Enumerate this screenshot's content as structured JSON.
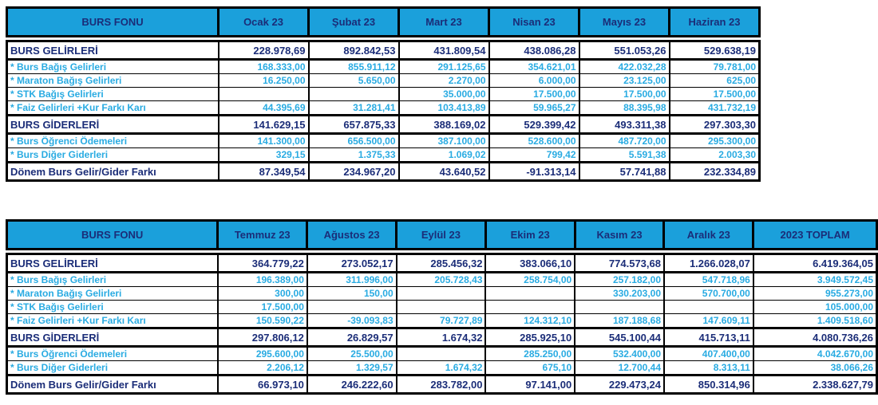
{
  "report": {
    "colors": {
      "header_bg": "#1BA0DB",
      "header_text": "#1B2D78",
      "section_text": "#1B2D78",
      "detail_text": "#29ABE2",
      "border": "#000000"
    },
    "tables": [
      {
        "corner_label": "BURS FONU",
        "columns": [
          "Ocak 23",
          "Şubat 23",
          "Mart 23",
          "Nisan 23",
          "Mayıs 23",
          "Haziran 23"
        ],
        "rows": [
          {
            "label": "BURS GELİRLERİ",
            "style": "section",
            "values": [
              "228.978,69",
              "892.842,53",
              "431.809,54",
              "438.086,28",
              "551.053,26",
              "529.638,19"
            ]
          },
          {
            "label": "* Burs Bağış Gelirleri",
            "style": "detail",
            "values": [
              "168.333,00",
              "855.911,12",
              "291.125,65",
              "354.621,01",
              "422.032,28",
              "79.781,00"
            ]
          },
          {
            "label": "* Maraton Bağış Gelirleri",
            "style": "detail",
            "values": [
              "16.250,00",
              "5.650,00",
              "2.270,00",
              "6.000,00",
              "23.125,00",
              "625,00"
            ]
          },
          {
            "label": "* STK Bağış Gelirleri",
            "style": "detail",
            "values": [
              "",
              "",
              "35.000,00",
              "17.500,00",
              "17.500,00",
              "17.500,00"
            ]
          },
          {
            "label": "* Faiz Gelirleri +Kur Farkı Karı",
            "style": "detail",
            "values": [
              "44.395,69",
              "31.281,41",
              "103.413,89",
              "59.965,27",
              "88.395,98",
              "431.732,19"
            ]
          },
          {
            "label": "BURS GİDERLERİ",
            "style": "section",
            "values": [
              "141.629,15",
              "657.875,33",
              "388.169,02",
              "529.399,42",
              "493.311,38",
              "297.303,30"
            ]
          },
          {
            "label": "* Burs Öğrenci Ödemeleri",
            "style": "detail",
            "values": [
              "141.300,00",
              "656.500,00",
              "387.100,00",
              "528.600,00",
              "487.720,00",
              "295.300,00"
            ]
          },
          {
            "label": "* Burs Diğer Giderleri",
            "style": "detail",
            "values": [
              "329,15",
              "1.375,33",
              "1.069,02",
              "799,42",
              "5.591,38",
              "2.003,30"
            ]
          },
          {
            "label": "Dönem Burs Gelir/Gider Farkı",
            "style": "total",
            "values": [
              "87.349,54",
              "234.967,20",
              "43.640,52",
              "-91.313,14",
              "57.741,88",
              "232.334,89"
            ]
          }
        ]
      },
      {
        "corner_label": "BURS FONU",
        "columns": [
          "Temmuz 23",
          "Ağustos 23",
          "Eylül 23",
          "Ekim 23",
          "Kasım 23",
          "Aralık 23",
          "2023 TOPLAM"
        ],
        "rows": [
          {
            "label": "BURS GELİRLERİ",
            "style": "section",
            "values": [
              "364.779,22",
              "273.052,17",
              "285.456,32",
              "383.066,10",
              "774.573,68",
              "1.266.028,07",
              "6.419.364,05"
            ]
          },
          {
            "label": "* Burs Bağış Gelirleri",
            "style": "detail",
            "values": [
              "196.389,00",
              "311.996,00",
              "205.728,43",
              "258.754,00",
              "257.182,00",
              "547.718,96",
              "3.949.572,45"
            ]
          },
          {
            "label": "* Maraton Bağış Gelirleri",
            "style": "detail",
            "values": [
              "300,00",
              "150,00",
              "",
              "",
              "330.203,00",
              "570.700,00",
              "955.273,00"
            ]
          },
          {
            "label": "* STK Bağış Gelirleri",
            "style": "detail",
            "values": [
              "17.500,00",
              "",
              "",
              "",
              "",
              "",
              "105.000,00"
            ]
          },
          {
            "label": "* Faiz Gelirleri +Kur Farkı Karı",
            "style": "detail",
            "values": [
              "150.590,22",
              "-39.093,83",
              "79.727,89",
              "124.312,10",
              "187.188,68",
              "147.609,11",
              "1.409.518,60"
            ]
          },
          {
            "label": "BURS GİDERLERİ",
            "style": "section",
            "values": [
              "297.806,12",
              "26.829,57",
              "1.674,32",
              "285.925,10",
              "545.100,44",
              "415.713,11",
              "4.080.736,26"
            ]
          },
          {
            "label": "* Burs Öğrenci Ödemeleri",
            "style": "detail",
            "values": [
              "295.600,00",
              "25.500,00",
              "",
              "285.250,00",
              "532.400,00",
              "407.400,00",
              "4.042.670,00"
            ]
          },
          {
            "label": "* Burs Diğer Giderleri",
            "style": "detail",
            "values": [
              "2.206,12",
              "1.329,57",
              "1.674,32",
              "675,10",
              "12.700,44",
              "8.313,11",
              "38.066,26"
            ]
          },
          {
            "label": "Dönem Burs Gelir/Gider Farkı",
            "style": "total",
            "values": [
              "66.973,10",
              "246.222,60",
              "283.782,00",
              "97.141,00",
              "229.473,24",
              "850.314,96",
              "2.338.627,79"
            ]
          }
        ]
      }
    ]
  }
}
